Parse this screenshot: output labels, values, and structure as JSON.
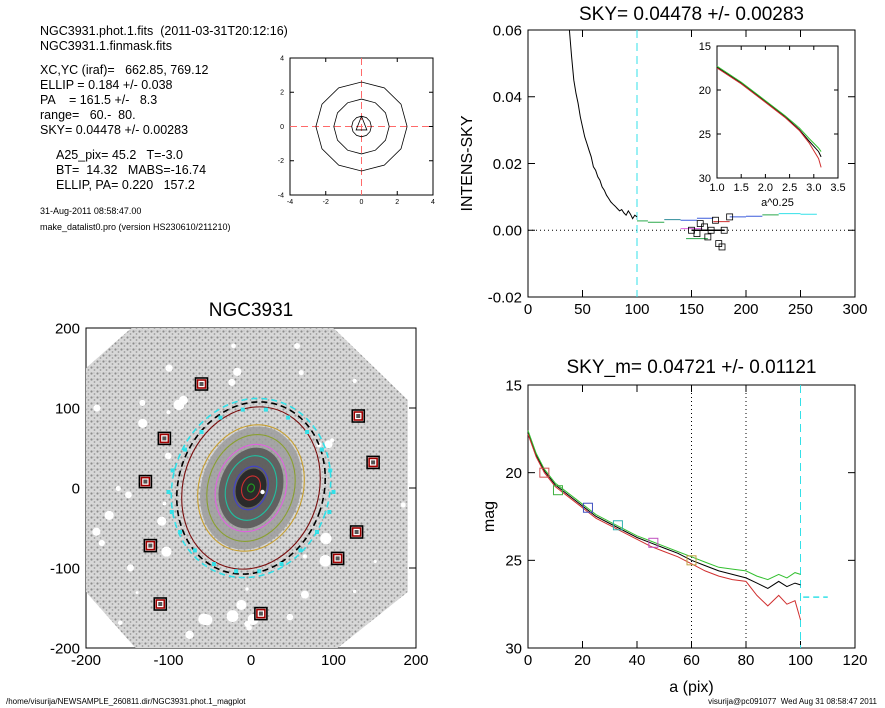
{
  "header": {
    "file_line": "NGC3931.phot.1.fits  (2011-03-31T20:12:16)",
    "mask_line": "NGC3931.1.finmask.fits",
    "params": [
      "XC,YC (iraf)=   662.85, 769.12",
      "ELLIP = 0.184 +/- 0.038",
      "PA    = 161.5 +/-   8.3",
      "range=   60.-  80.",
      "SKY= 0.04478 +/- 0.00283"
    ],
    "derived": [
      "A25_pix= 45.2   T=-3.0",
      "BT=  14.32   MABS=-16.74",
      "ELLIP, PA= 0.220   157.2"
    ],
    "date": "31-Aug-2011 08:58:47.00",
    "program": "make_datalist0.pro (version HS230610/211210)"
  },
  "footer": {
    "path": "/home/visurija/NEWSAMPLE_260811.dir/NGC3931.phot.1_magplot",
    "user": "visurija@pc091077  Wed Aug 31 08:58:47 2011"
  },
  "colors": {
    "guide": "#ff6a6a",
    "sky_line": "#33e0e8",
    "mask_box": "#a00000",
    "points": "#7a7a7a"
  },
  "chart_data": [
    {
      "id": "centroid_contours",
      "type": "line",
      "title": "",
      "xlim": [
        -4,
        4
      ],
      "ylim": [
        -4,
        4
      ],
      "x_ticks": [
        "-4",
        "-2",
        "0",
        "2",
        "4"
      ],
      "y_ticks": [
        "-4",
        "-2",
        "0",
        "2",
        "4"
      ],
      "contours": [
        {
          "rx": 2.55,
          "ry": 2.6
        },
        {
          "rx": 1.55,
          "ry": 1.6
        },
        {
          "rx": 0.55,
          "ry": 0.6
        }
      ]
    },
    {
      "id": "sky_profile",
      "type": "line",
      "title": "SKY= 0.04478 +/- 0.00283",
      "xlabel": "",
      "ylabel": "INTENS-SKY",
      "xlim": [
        0,
        300
      ],
      "ylim": [
        -0.02,
        0.06
      ],
      "x_ticks": [
        "0",
        "50",
        "100",
        "150",
        "200",
        "250",
        "300"
      ],
      "y_ticks": [
        "-0.02",
        "0.00",
        "0.02",
        "0.04",
        "0.06"
      ],
      "sky_radius": 100,
      "series": [
        {
          "values": [
            [
              38,
              0.06
            ],
            [
              40,
              0.052
            ],
            [
              42,
              0.045
            ],
            [
              44,
              0.041
            ],
            [
              46,
              0.038
            ],
            [
              48,
              0.034
            ],
            [
              50,
              0.031
            ],
            [
              52,
              0.028
            ],
            [
              54,
              0.026
            ],
            [
              56,
              0.024
            ],
            [
              58,
              0.022
            ],
            [
              60,
              0.019
            ],
            [
              62,
              0.018
            ],
            [
              64,
              0.016
            ],
            [
              66,
              0.015
            ],
            [
              68,
              0.013
            ],
            [
              70,
              0.012
            ],
            [
              72,
              0.0105
            ],
            [
              74,
              0.0095
            ],
            [
              76,
              0.0085
            ],
            [
              78,
              0.0078
            ],
            [
              80,
              0.0072
            ],
            [
              82,
              0.0065
            ],
            [
              84,
              0.0058
            ],
            [
              86,
              0.0062
            ],
            [
              88,
              0.0052
            ],
            [
              90,
              0.0045
            ],
            [
              92,
              0.0058
            ],
            [
              94,
              0.0048
            ],
            [
              96,
              0.0035
            ],
            [
              98,
              0.0045
            ],
            [
              100,
              0.004
            ]
          ]
        }
      ],
      "sky_segments": [
        {
          "x0": 100,
          "x1": 110,
          "y": 0.0028,
          "color": "#2aa84a"
        },
        {
          "x0": 110,
          "x1": 125,
          "y": 0.0024,
          "color": "#2aa84a"
        },
        {
          "x0": 125,
          "x1": 140,
          "y": 0.0032,
          "color": "#2e8b9a"
        },
        {
          "x0": 140,
          "x1": 155,
          "y": 0.003,
          "color": "#3b5bdc"
        },
        {
          "x0": 155,
          "x1": 170,
          "y": 0.0036,
          "color": "#3b5bdc"
        },
        {
          "x0": 170,
          "x1": 185,
          "y": 0.0026,
          "color": "#d03030"
        },
        {
          "x0": 185,
          "x1": 200,
          "y": 0.004,
          "color": "#3b5bdc"
        },
        {
          "x0": 200,
          "x1": 215,
          "y": 0.0042,
          "color": "#3b5bdc"
        },
        {
          "x0": 215,
          "x1": 230,
          "y": 0.0046,
          "color": "#2aa84a"
        },
        {
          "x0": 230,
          "x1": 250,
          "y": 0.005,
          "color": "#33e0e8"
        },
        {
          "x0": 250,
          "x1": 265,
          "y": 0.0048,
          "color": "#33e0e8"
        },
        {
          "x0": 140,
          "x1": 160,
          "y": 0.0005,
          "color": "#e060e0"
        },
        {
          "x0": 145,
          "x1": 165,
          "y": -0.0025,
          "color": "#2aa84a"
        },
        {
          "x0": 150,
          "x1": 180,
          "y": 0.0,
          "color": "#000000"
        }
      ],
      "sky_squares": [
        [
          150,
          0.0
        ],
        [
          155,
          -0.001
        ],
        [
          158,
          0.002
        ],
        [
          162,
          0.001
        ],
        [
          165,
          -0.002
        ],
        [
          168,
          0.0
        ],
        [
          172,
          0.003
        ],
        [
          175,
          -0.004
        ],
        [
          178,
          -0.005
        ],
        [
          180,
          0.0
        ],
        [
          185,
          0.004
        ]
      ],
      "inset": {
        "xlabel": "a^0.25",
        "xlim": [
          1.0,
          3.5
        ],
        "ylim": [
          15,
          30
        ],
        "x_ticks": [
          "1.0",
          "1.5",
          "2.0",
          "2.5",
          "3.0",
          "3.5"
        ],
        "y_ticks": [
          "15",
          "20",
          "25",
          "30"
        ],
        "series": [
          {
            "color": "#000000",
            "values": [
              [
                1.0,
                17.4
              ],
              [
                1.5,
                19.2
              ],
              [
                2.0,
                21.3
              ],
              [
                2.4,
                23.0
              ],
              [
                2.7,
                24.5
              ],
              [
                2.9,
                25.8
              ],
              [
                3.1,
                27.0
              ],
              [
                3.15,
                27.6
              ]
            ]
          },
          {
            "color": "#d03030",
            "values": [
              [
                1.0,
                17.5
              ],
              [
                1.5,
                19.3
              ],
              [
                2.0,
                21.4
              ],
              [
                2.4,
                23.1
              ],
              [
                2.7,
                24.6
              ],
              [
                2.9,
                26.0
              ],
              [
                3.1,
                27.8
              ],
              [
                3.15,
                28.8
              ]
            ]
          },
          {
            "color": "#33c030",
            "values": [
              [
                1.0,
                17.3
              ],
              [
                1.5,
                19.1
              ],
              [
                2.0,
                21.2
              ],
              [
                2.4,
                22.9
              ],
              [
                2.7,
                24.3
              ],
              [
                2.9,
                25.5
              ],
              [
                3.1,
                26.6
              ],
              [
                3.15,
                27.0
              ]
            ]
          }
        ]
      }
    },
    {
      "id": "galaxy_map",
      "type": "scatter",
      "title": "NGC3931",
      "xlim": [
        -200,
        200
      ],
      "ylim": [
        -200,
        200
      ],
      "x_ticks": [
        "-200",
        "-100",
        "0",
        "100",
        "200"
      ],
      "y_ticks": [
        "-200",
        "-100",
        "0",
        "100",
        "200"
      ],
      "mask_boxes": [
        [
          -60,
          130
        ],
        [
          130,
          90
        ],
        [
          -105,
          62
        ],
        [
          148,
          32
        ],
        [
          -128,
          8
        ],
        [
          128,
          -55
        ],
        [
          -122,
          -72
        ],
        [
          105,
          -88
        ],
        [
          -110,
          -145
        ],
        [
          12,
          -157
        ]
      ],
      "ellipses": [
        {
          "rx": 82,
          "ry": 100,
          "pa": 161.5,
          "color": "#7a1010",
          "dashed": false
        },
        {
          "rx": 95,
          "ry": 110,
          "pa": 161.5,
          "color": "#33e0e8",
          "dashed": true
        },
        {
          "rx": 88,
          "ry": 106,
          "pa": 161.5,
          "color": "#000000",
          "dashed": true
        },
        {
          "rx": 63,
          "ry": 78,
          "pa": 161.5,
          "color": "#c8a030",
          "dashed": false
        },
        {
          "rx": 52,
          "ry": 66,
          "pa": 161.5,
          "color": "#8aa030",
          "dashed": false
        },
        {
          "rx": 42,
          "ry": 54,
          "pa": 161.5,
          "color": "#e060e0",
          "dashed": false
        },
        {
          "rx": 30,
          "ry": 40,
          "pa": 161.5,
          "color": "#20c0a0",
          "dashed": false
        },
        {
          "rx": 20,
          "ry": 27,
          "pa": 161.5,
          "color": "#4040d0",
          "dashed": false
        },
        {
          "rx": 11,
          "ry": 15,
          "pa": 161.5,
          "color": "#d03030",
          "dashed": false
        },
        {
          "rx": 4,
          "ry": 5,
          "pa": 161.5,
          "color": "#20a020",
          "dashed": false
        }
      ],
      "sky_ticks": [
        [
          -100,
          -5
        ],
        [
          -96,
          -30
        ],
        [
          -86,
          -55
        ],
        [
          -68,
          -78
        ],
        [
          -45,
          -95
        ],
        [
          -18,
          -104
        ],
        [
          10,
          -104
        ],
        [
          37,
          -95
        ],
        [
          60,
          -78
        ],
        [
          80,
          -55
        ],
        [
          95,
          -30
        ],
        [
          100,
          -5
        ],
        [
          96,
          22
        ],
        [
          86,
          48
        ],
        [
          68,
          70
        ],
        [
          45,
          88
        ],
        [
          18,
          98
        ],
        [
          -10,
          98
        ],
        [
          -37,
          88
        ],
        [
          -60,
          70
        ],
        [
          -80,
          48
        ],
        [
          -95,
          22
        ]
      ]
    },
    {
      "id": "mag_profile",
      "type": "line",
      "title": "SKY_m=  0.04721 +/- 0.01121",
      "xlabel": "a (pix)",
      "ylabel": "mag",
      "xlim": [
        0,
        120
      ],
      "ylim": [
        15,
        30
      ],
      "x_ticks": [
        "0",
        "20",
        "40",
        "60",
        "80",
        "100",
        "120"
      ],
      "y_ticks": [
        "15",
        "20",
        "25",
        "30"
      ],
      "vlines": [
        60,
        80
      ],
      "sky_radius": 100,
      "sky_level": {
        "x0": 101,
        "x1": 110,
        "y": 27.1
      },
      "series": [
        {
          "color": "#000000",
          "values": [
            [
              0,
              17.7
            ],
            [
              3,
              19.0
            ],
            [
              6,
              19.9
            ],
            [
              10,
              20.7
            ],
            [
              15,
              21.3
            ],
            [
              20,
              21.9
            ],
            [
              25,
              22.5
            ],
            [
              30,
              22.9
            ],
            [
              35,
              23.3
            ],
            [
              40,
              23.7
            ],
            [
              45,
              24.0
            ],
            [
              50,
              24.3
            ],
            [
              55,
              24.6
            ],
            [
              60,
              25.0
            ],
            [
              65,
              25.3
            ],
            [
              70,
              25.6
            ],
            [
              75,
              25.8
            ],
            [
              80,
              26.0
            ],
            [
              84,
              26.3
            ],
            [
              88,
              26.6
            ],
            [
              92,
              26.2
            ],
            [
              95,
              26.5
            ],
            [
              98,
              26.3
            ],
            [
              100,
              26.4
            ]
          ]
        },
        {
          "color": "#d03030",
          "values": [
            [
              0,
              17.8
            ],
            [
              3,
              19.1
            ],
            [
              6,
              20.0
            ],
            [
              10,
              20.8
            ],
            [
              15,
              21.4
            ],
            [
              20,
              22.0
            ],
            [
              25,
              22.6
            ],
            [
              30,
              23.0
            ],
            [
              35,
              23.4
            ],
            [
              40,
              23.8
            ],
            [
              45,
              24.2
            ],
            [
              50,
              24.5
            ],
            [
              55,
              24.8
            ],
            [
              60,
              25.2
            ],
            [
              65,
              25.6
            ],
            [
              70,
              25.9
            ],
            [
              75,
              26.1
            ],
            [
              80,
              26.2
            ],
            [
              84,
              27.0
            ],
            [
              88,
              27.6
            ],
            [
              92,
              27.0
            ],
            [
              95,
              27.5
            ],
            [
              98,
              27.3
            ],
            [
              100,
              28.4
            ]
          ]
        },
        {
          "color": "#33c030",
          "values": [
            [
              0,
              17.6
            ],
            [
              3,
              18.9
            ],
            [
              6,
              19.8
            ],
            [
              10,
              20.6
            ],
            [
              15,
              21.2
            ],
            [
              20,
              21.8
            ],
            [
              25,
              22.4
            ],
            [
              30,
              22.8
            ],
            [
              35,
              23.2
            ],
            [
              40,
              23.6
            ],
            [
              45,
              23.9
            ],
            [
              50,
              24.2
            ],
            [
              55,
              24.5
            ],
            [
              60,
              24.8
            ],
            [
              65,
              25.1
            ],
            [
              70,
              25.4
            ],
            [
              75,
              25.5
            ],
            [
              80,
              25.6
            ],
            [
              84,
              25.9
            ],
            [
              88,
              26.1
            ],
            [
              92,
              25.8
            ],
            [
              95,
              26.0
            ],
            [
              98,
              25.7
            ],
            [
              100,
              25.8
            ]
          ]
        }
      ],
      "markers": [
        {
          "x": 6,
          "y": 20.0,
          "color": "#d05050"
        },
        {
          "x": 11,
          "y": 21.0,
          "color": "#40b040"
        },
        {
          "x": 22,
          "y": 22.0,
          "color": "#4050c0"
        },
        {
          "x": 33,
          "y": 23.0,
          "color": "#30b0b0"
        },
        {
          "x": 46,
          "y": 24.0,
          "color": "#c050c0"
        },
        {
          "x": 60,
          "y": 25.0,
          "color": "#c0a040"
        }
      ]
    }
  ]
}
